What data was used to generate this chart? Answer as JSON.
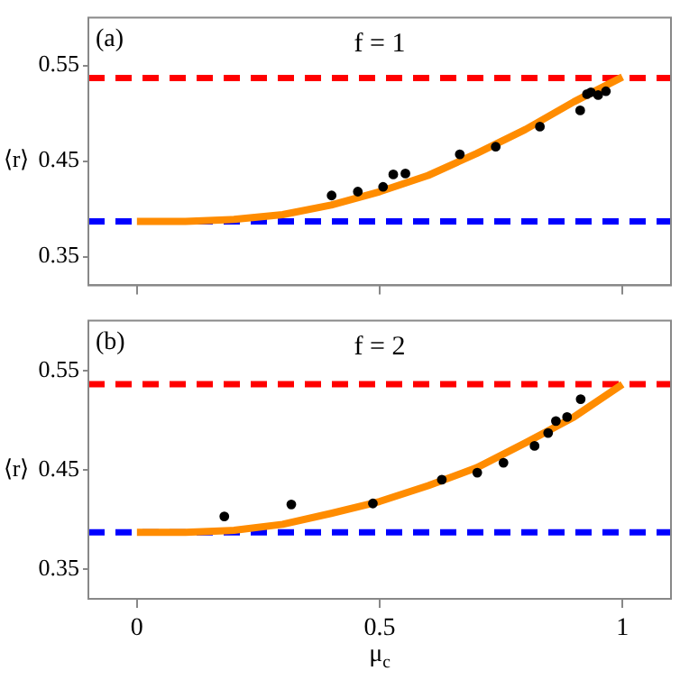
{
  "chart_data": [
    {
      "type": "scatter",
      "title": "f = 1",
      "ylabel": "⟨r⟩",
      "annotations": [
        "(a)"
      ],
      "xlim": [
        -0.1,
        1.1
      ],
      "xticks": [
        0,
        0.5,
        1
      ],
      "ylim": [
        0.32,
        0.6
      ],
      "yticks": [
        0.35,
        0.45,
        0.55
      ],
      "tick_labels": "y",
      "grid": false,
      "legend": false,
      "ref_lines": [
        {
          "axis": "y",
          "value": 0.537,
          "color": "#ff0000",
          "line_style": "dashed"
        },
        {
          "axis": "y",
          "value": 0.387,
          "color": "#0000ff",
          "line_style": "dashed"
        }
      ],
      "series": [
        {
          "type": "line",
          "color": "#ff8c00",
          "marker": "none",
          "x": [
            0,
            0.1,
            0.2,
            0.3,
            0.4,
            0.5,
            0.6,
            0.7,
            0.8,
            0.9,
            1
          ],
          "values": [
            0.387,
            0.387,
            0.389,
            0.394,
            0.404,
            0.418,
            0.435,
            0.458,
            0.483,
            0.512,
            0.538
          ]
        },
        {
          "type": "scatter",
          "color": "#000000",
          "marker": "circle",
          "x": [
            0.401,
            0.455,
            0.507,
            0.528,
            0.553,
            0.665,
            0.739,
            0.83,
            0.913,
            0.927,
            0.935,
            0.95,
            0.966
          ],
          "values": [
            0.414,
            0.418,
            0.423,
            0.436,
            0.437,
            0.457,
            0.465,
            0.486,
            0.503,
            0.52,
            0.522,
            0.519,
            0.523
          ]
        }
      ]
    },
    {
      "type": "scatter",
      "title": "f = 2",
      "xlabel": "μ$_{c}$",
      "ylabel": "⟨r⟩",
      "annotations": [
        "(b)"
      ],
      "xlim": [
        -0.1,
        1.1
      ],
      "xticks": [
        0,
        0.5,
        1
      ],
      "ylim": [
        0.32,
        0.6
      ],
      "yticks": [
        0.35,
        0.45,
        0.55
      ],
      "grid": false,
      "legend": false,
      "ref_lines": [
        {
          "axis": "y",
          "value": 0.536,
          "color": "#ff0000",
          "line_style": "dashed"
        },
        {
          "axis": "y",
          "value": 0.387,
          "color": "#0000ff",
          "line_style": "dashed"
        }
      ],
      "series": [
        {
          "type": "line",
          "color": "#ff8c00",
          "marker": "none",
          "x": [
            0,
            0.1,
            0.2,
            0.3,
            0.4,
            0.5,
            0.6,
            0.7,
            0.8,
            0.9,
            1
          ],
          "values": [
            0.387,
            0.387,
            0.389,
            0.395,
            0.406,
            0.418,
            0.434,
            0.452,
            0.477,
            0.503,
            0.536
          ]
        },
        {
          "type": "scatter",
          "color": "#000000",
          "marker": "circle",
          "x": [
            0.18,
            0.318,
            0.486,
            0.628,
            0.701,
            0.755,
            0.819,
            0.847,
            0.863,
            0.886,
            0.914
          ],
          "values": [
            0.403,
            0.415,
            0.416,
            0.44,
            0.447,
            0.457,
            0.474,
            0.487,
            0.499,
            0.503,
            0.521
          ]
        }
      ]
    }
  ]
}
